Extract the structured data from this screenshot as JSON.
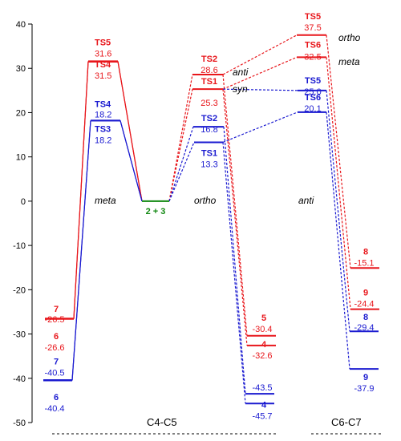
{
  "chart_data": {
    "type": "energy-diagram",
    "ylim": [
      -50,
      40
    ],
    "yticks": [
      -50,
      -40,
      -30,
      -20,
      -10,
      0,
      10,
      20,
      30,
      40
    ],
    "colors": {
      "red": "#e8161b",
      "blue": "#1a1ad0",
      "green": "#118811"
    },
    "regions": [
      "C4-C5",
      "C6-C7"
    ],
    "annotations": [
      "meta",
      "ortho",
      "anti",
      "syn",
      "anti",
      "ortho",
      "meta"
    ],
    "reactant": {
      "name": "2 + 3",
      "energy": 0
    },
    "levels": [
      {
        "id": "TS5_L",
        "name": "TS5",
        "value": "31.6",
        "energy": 31.6,
        "color": "red"
      },
      {
        "id": "TS4_L",
        "name": "TS4",
        "value": "31.5",
        "energy": 31.5,
        "color": "red"
      },
      {
        "id": "TS4b_L",
        "name": "TS4",
        "value": "18.2",
        "energy": 18.2,
        "color": "blue"
      },
      {
        "id": "TS3_L",
        "name": "TS3",
        "value": "18.2",
        "energy": 18.2,
        "color": "blue"
      },
      {
        "id": "P7r",
        "name": "7",
        "value": "-26.5",
        "energy": -26.5,
        "color": "red"
      },
      {
        "id": "P6r",
        "name": "6",
        "value": "-26.6",
        "energy": -26.6,
        "color": "red"
      },
      {
        "id": "P7b",
        "name": "7",
        "value": "-40.5",
        "energy": -40.5,
        "color": "blue"
      },
      {
        "id": "P6b",
        "name": "6",
        "value": "-40.4",
        "energy": -40.4,
        "color": "blue"
      },
      {
        "id": "TS2r",
        "name": "TS2",
        "value": "28.6",
        "energy": 28.6,
        "color": "red"
      },
      {
        "id": "TS1r",
        "name": "TS1",
        "value": "25.3",
        "energy": 25.3,
        "color": "red"
      },
      {
        "id": "TS2b",
        "name": "TS2",
        "value": "16.8",
        "energy": 16.8,
        "color": "blue"
      },
      {
        "id": "TS1b",
        "name": "TS1",
        "value": "13.3",
        "energy": 13.3,
        "color": "blue"
      },
      {
        "id": "P5r",
        "name": "5",
        "value": "-30.4",
        "energy": -30.4,
        "color": "red"
      },
      {
        "id": "P4r",
        "name": "4",
        "value": "-32.6",
        "energy": -32.6,
        "color": "red"
      },
      {
        "id": "P5b",
        "name": "",
        "value": "-43.5",
        "energy": -43.5,
        "color": "blue"
      },
      {
        "id": "P4b",
        "name": "4",
        "value": "-45.7",
        "energy": -45.7,
        "color": "blue"
      },
      {
        "id": "TS5r",
        "name": "TS5",
        "value": "37.5",
        "energy": 37.5,
        "color": "red"
      },
      {
        "id": "TS6r",
        "name": "TS6",
        "value": "32.5",
        "energy": 32.5,
        "color": "red"
      },
      {
        "id": "TS5b",
        "name": "TS5",
        "value": "25.0",
        "energy": 25.0,
        "color": "blue"
      },
      {
        "id": "TS6b",
        "name": "TS6",
        "value": "20.1",
        "energy": 20.1,
        "color": "blue"
      },
      {
        "id": "P8r",
        "name": "8",
        "value": "-15.1",
        "energy": -15.1,
        "color": "red"
      },
      {
        "id": "P9r",
        "name": "9",
        "value": "-24.4",
        "energy": -24.4,
        "color": "red"
      },
      {
        "id": "P8b",
        "name": "8",
        "value": "-29.4",
        "energy": -29.4,
        "color": "blue"
      },
      {
        "id": "P9b",
        "name": "9",
        "value": "-37.9",
        "energy": -37.9,
        "color": "blue"
      }
    ],
    "connections": [
      {
        "from": "reactant",
        "to": "TS5_L",
        "color": "red",
        "style": "solid"
      },
      {
        "from": "reactant",
        "to": "TS4_L",
        "color": "red",
        "style": "solid"
      },
      {
        "from": "reactant",
        "to": "TS4b_L",
        "color": "blue",
        "style": "solid"
      },
      {
        "from": "reactant",
        "to": "TS3_L",
        "color": "blue",
        "style": "solid"
      },
      {
        "from": "TS5_L",
        "to": "P7r",
        "color": "red",
        "style": "solid"
      },
      {
        "from": "TS4_L",
        "to": "P6r",
        "color": "red",
        "style": "solid"
      },
      {
        "from": "TS4b_L",
        "to": "P7b",
        "color": "blue",
        "style": "solid"
      },
      {
        "from": "TS3_L",
        "to": "P6b",
        "color": "blue",
        "style": "solid"
      },
      {
        "from": "reactant",
        "to": "TS2r",
        "color": "red",
        "style": "dashed"
      },
      {
        "from": "reactant",
        "to": "TS1r",
        "color": "red",
        "style": "dashed"
      },
      {
        "from": "reactant",
        "to": "TS2b",
        "color": "blue",
        "style": "dashed"
      },
      {
        "from": "reactant",
        "to": "TS1b",
        "color": "blue",
        "style": "dashed"
      },
      {
        "from": "TS2r",
        "to": "P5r",
        "color": "red",
        "style": "dashed"
      },
      {
        "from": "TS1r",
        "to": "P4r",
        "color": "red",
        "style": "dashed"
      },
      {
        "from": "TS2b",
        "to": "P5b",
        "color": "blue",
        "style": "dashed"
      },
      {
        "from": "TS1b",
        "to": "P4b",
        "color": "blue",
        "style": "dashed"
      },
      {
        "from": "TS2r",
        "to": "TS5r",
        "color": "red",
        "style": "dashed"
      },
      {
        "from": "TS1r",
        "to": "TS6r",
        "color": "red",
        "style": "dashed"
      },
      {
        "from": "TS1r",
        "to": "TS5b",
        "color": "blue",
        "style": "dashed"
      },
      {
        "from": "TS1b",
        "to": "TS6b",
        "color": "blue",
        "style": "dashed"
      },
      {
        "from": "TS5r",
        "to": "P8r",
        "color": "red",
        "style": "dashed"
      },
      {
        "from": "TS6r",
        "to": "P9r",
        "color": "red",
        "style": "dashed"
      },
      {
        "from": "TS5b",
        "to": "P8b",
        "color": "blue",
        "style": "dashed"
      },
      {
        "from": "TS6b",
        "to": "P9b",
        "color": "blue",
        "style": "dashed"
      }
    ]
  }
}
